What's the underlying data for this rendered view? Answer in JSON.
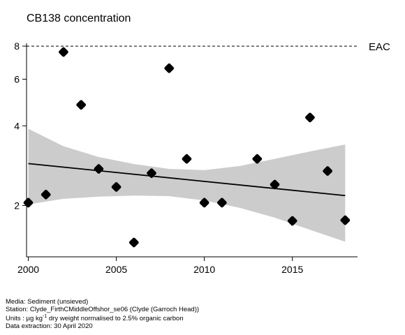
{
  "chart_data": {
    "type": "scatter",
    "title": "CB138 concentration",
    "xlabel": "",
    "ylabel": "",
    "y_scale": "log",
    "xlim": [
      1999.9,
      2018.7
    ],
    "ylim": [
      1.28,
      8.2
    ],
    "x_ticks": [
      2000,
      2005,
      2010,
      2015
    ],
    "y_ticks": [
      2,
      4,
      6,
      8
    ],
    "grid": false,
    "reference_line": {
      "label": "EAC",
      "value": 8,
      "style": "dashed"
    },
    "points": [
      {
        "x": 2000,
        "y": 2.05
      },
      {
        "x": 2001,
        "y": 2.2
      },
      {
        "x": 2002,
        "y": 7.6
      },
      {
        "x": 2003,
        "y": 4.8
      },
      {
        "x": 2004,
        "y": 2.75
      },
      {
        "x": 2005,
        "y": 2.35
      },
      {
        "x": 2006,
        "y": 1.45
      },
      {
        "x": 2007,
        "y": 2.65
      },
      {
        "x": 2008,
        "y": 6.6
      },
      {
        "x": 2009,
        "y": 3.0
      },
      {
        "x": 2010,
        "y": 2.05
      },
      {
        "x": 2011,
        "y": 2.05
      },
      {
        "x": 2013,
        "y": 3.0
      },
      {
        "x": 2014,
        "y": 2.4
      },
      {
        "x": 2015,
        "y": 1.75
      },
      {
        "x": 2016,
        "y": 4.3
      },
      {
        "x": 2017,
        "y": 2.7
      },
      {
        "x": 2018,
        "y": 1.76
      }
    ],
    "trend": {
      "x": [
        2000,
        2018
      ],
      "y": [
        2.88,
        2.18
      ]
    },
    "confidence_band": {
      "x": [
        2000,
        2002,
        2004,
        2006,
        2008,
        2010,
        2012,
        2014,
        2016,
        2018
      ],
      "upper": [
        3.9,
        3.35,
        3.05,
        2.87,
        2.75,
        2.72,
        2.82,
        3.0,
        3.2,
        3.4
      ],
      "lower": [
        2.02,
        2.12,
        2.16,
        2.18,
        2.17,
        2.09,
        1.96,
        1.8,
        1.62,
        1.46
      ]
    },
    "colors": {
      "band": "#cccccc",
      "points": "#000000",
      "line": "#000000"
    }
  },
  "footer": {
    "media": "Media: Sediment (unsieved)",
    "station": "Station: Clyde_FirthCMiddleOffshor_se06 (Clyde (Garroch Head))",
    "units_prefix": "Units : µg kg",
    "units_sup": "-1",
    "units_suffix": " dry weight normalised to 2.5% organic carbon",
    "extraction": "Data extraction: 30 April 2020"
  }
}
